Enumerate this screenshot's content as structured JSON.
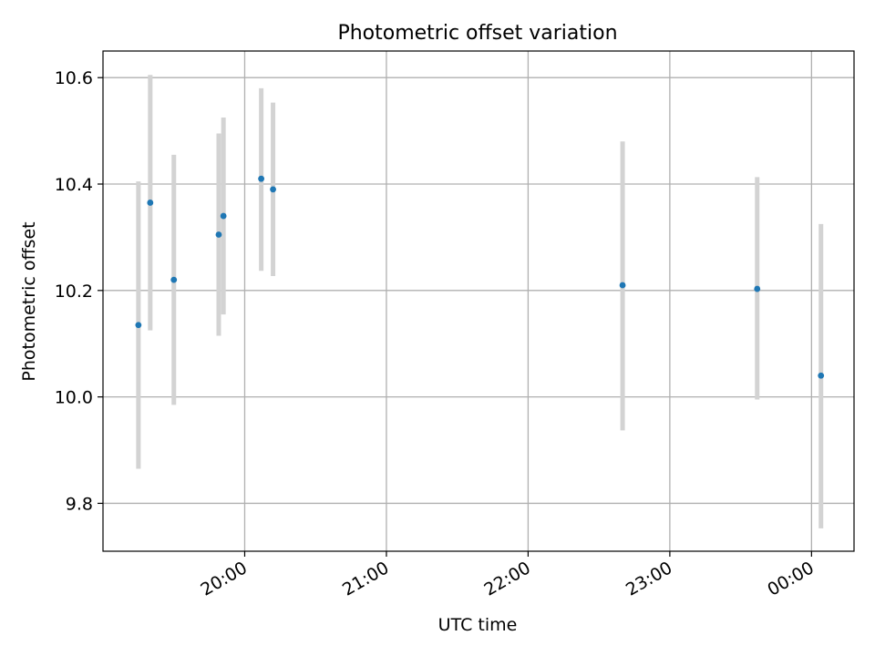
{
  "chart_data": {
    "type": "scatter",
    "title": "Photometric offset variation",
    "xlabel": "UTC time",
    "ylabel": "Photometric offset",
    "x_is_time": true,
    "xlim": [
      "19:00",
      "00:18"
    ],
    "ylim": [
      9.71,
      10.65
    ],
    "yticks": [
      9.8,
      10.0,
      10.2,
      10.4,
      10.6
    ],
    "ytick_labels": [
      "9.8",
      "10.0",
      "10.2",
      "10.4",
      "10.6"
    ],
    "xticks": [
      "20:00",
      "21:00",
      "22:00",
      "23:00",
      "00:00"
    ],
    "xtick_labels": [
      "20:00",
      "21:00",
      "22:00",
      "23:00",
      "00:00"
    ],
    "grid": true,
    "colors": {
      "point": "#1f77b4",
      "errorbar": "#d3d3d3",
      "grid": "#b0b0b0",
      "axes": "#000000"
    },
    "x": [
      "19:15",
      "19:20",
      "19:30",
      "19:49",
      "19:51",
      "20:07",
      "20:12",
      "22:40",
      "23:37",
      "00:04"
    ],
    "y": [
      10.135,
      10.365,
      10.22,
      10.305,
      10.34,
      10.41,
      10.39,
      10.21,
      10.203,
      10.04
    ],
    "yerr_low": [
      9.865,
      10.125,
      9.985,
      10.115,
      10.155,
      10.237,
      10.227,
      9.937,
      9.995,
      9.753
    ],
    "yerr_high": [
      10.405,
      10.605,
      10.455,
      10.495,
      10.525,
      10.58,
      10.553,
      10.48,
      10.413,
      10.325
    ]
  }
}
